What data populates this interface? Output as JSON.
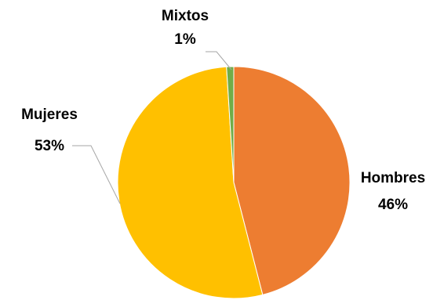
{
  "chart_data": {
    "type": "pie",
    "slices": [
      {
        "label": "Hombres",
        "value": 46,
        "value_label": "46%",
        "color": "#ED7D31"
      },
      {
        "label": "Mujeres",
        "value": 53,
        "value_label": "53%",
        "color": "#FFC000"
      },
      {
        "label": "Mixtos",
        "value": 1,
        "value_label": "1%",
        "color": "#70AD47"
      }
    ],
    "start_angle": "12 o'clock, clockwise",
    "data_labels": "category and percentage"
  }
}
